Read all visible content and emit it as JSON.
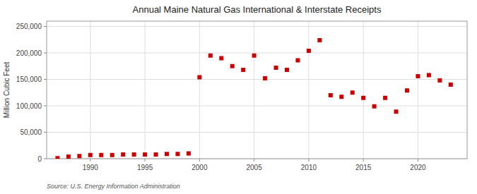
{
  "chart_data": {
    "type": "scatter",
    "title": "Annual Maine Natural Gas International & Interstate Receipts",
    "ylabel": "Million Cubic Feet",
    "source": "Source: U.S. Energy Information Administration",
    "color": "#cc0000",
    "marker": "square",
    "grid": true,
    "xlim": [
      1986,
      2024.5
    ],
    "xticks": [
      1990,
      1995,
      2000,
      2005,
      2010,
      2015,
      2020
    ],
    "ylim": [
      0,
      260000
    ],
    "yticks": [
      0,
      {
        "value": 50000,
        "label": "50,000"
      },
      {
        "value": 100000,
        "label": "100,000"
      },
      {
        "value": 150000,
        "label": "150,000"
      },
      {
        "value": 200000,
        "label": "200,000"
      },
      {
        "value": 250000,
        "label": "250,000"
      }
    ],
    "x": [
      1987,
      1988,
      1989,
      1990,
      1991,
      1992,
      1993,
      1994,
      1995,
      1996,
      1997,
      1998,
      1999,
      2000,
      2001,
      2002,
      2003,
      2004,
      2005,
      2006,
      2007,
      2008,
      2009,
      2010,
      2011,
      2012,
      2013,
      2014,
      2015,
      2016,
      2017,
      2018,
      2019,
      2020,
      2021,
      2022,
      2023
    ],
    "values": [
      1000,
      4000,
      5000,
      7000,
      7000,
      7000,
      8000,
      8000,
      8000,
      8000,
      9000,
      9000,
      10000,
      154000,
      195000,
      190000,
      175000,
      168000,
      195000,
      152000,
      172000,
      168000,
      186000,
      204000,
      224000,
      120000,
      117000,
      125000,
      115000,
      99000,
      115000,
      89000,
      129000,
      156000,
      158000,
      148000,
      140000
    ]
  }
}
